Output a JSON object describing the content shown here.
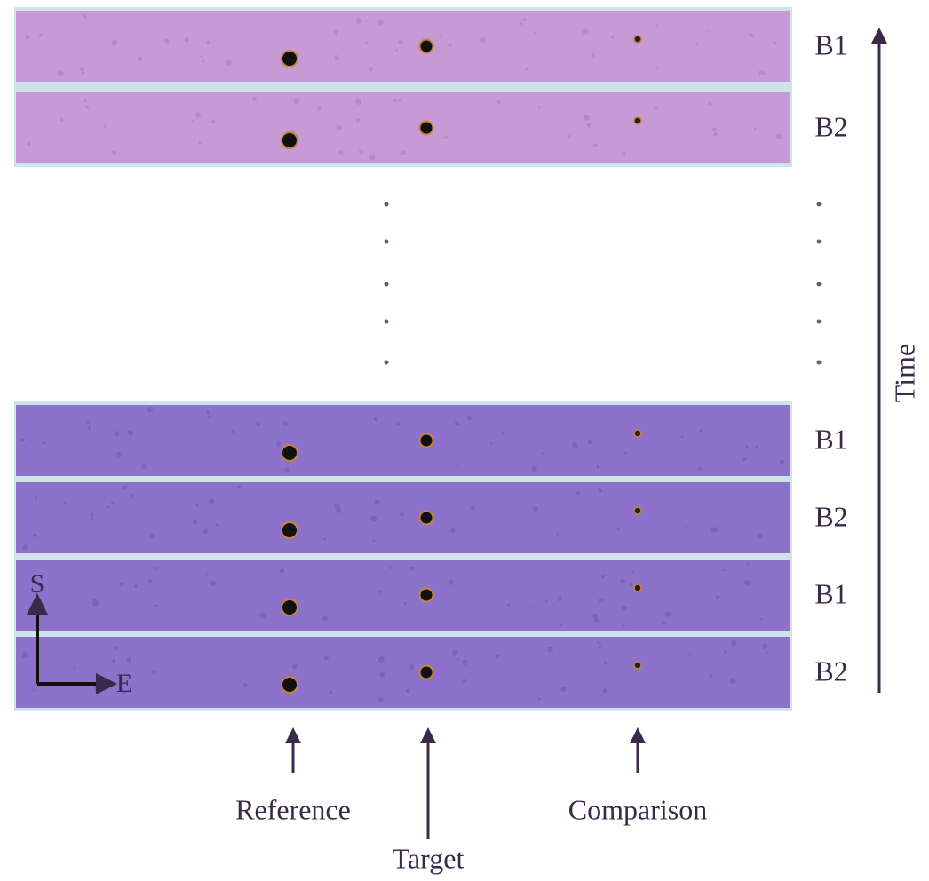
{
  "top_group": {
    "bands": [
      "B1",
      "B2"
    ]
  },
  "bottom_group": {
    "bands": [
      "B1",
      "B2",
      "B1",
      "B2"
    ]
  },
  "time_label": "Time",
  "compass": {
    "south": "S",
    "east": "E"
  },
  "stars": [
    "Reference",
    "Target",
    "Comparison"
  ]
}
